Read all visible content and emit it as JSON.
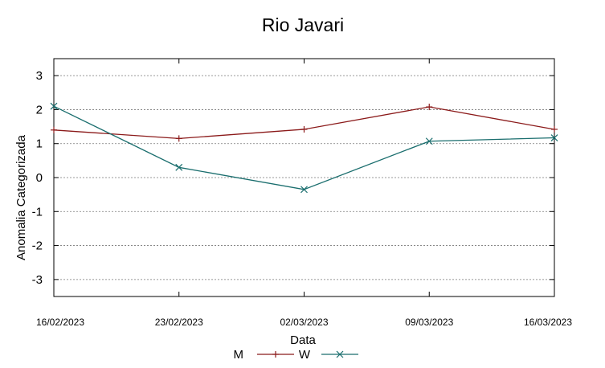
{
  "chart_data": {
    "type": "line",
    "title": "Rio Javari",
    "xlabel": "Data",
    "ylabel": "Anomalia Categorizada",
    "categories": [
      "16/02/2023",
      "23/02/2023",
      "02/03/2023",
      "09/03/2023",
      "16/03/2023"
    ],
    "yticks": [
      "3",
      "2",
      "1",
      "0",
      "-1",
      "-2",
      "-3"
    ],
    "ylim": [
      -3.5,
      3.5
    ],
    "grid": true,
    "legend_position": "bottom",
    "series": [
      {
        "name": "M",
        "color": "#8b1a1a",
        "marker": "plus",
        "values": [
          1.4,
          1.15,
          1.42,
          2.08,
          1.42
        ]
      },
      {
        "name": "W",
        "color": "#1a6e6e",
        "marker": "x",
        "values": [
          2.1,
          0.3,
          -0.35,
          1.07,
          1.17
        ]
      }
    ]
  }
}
